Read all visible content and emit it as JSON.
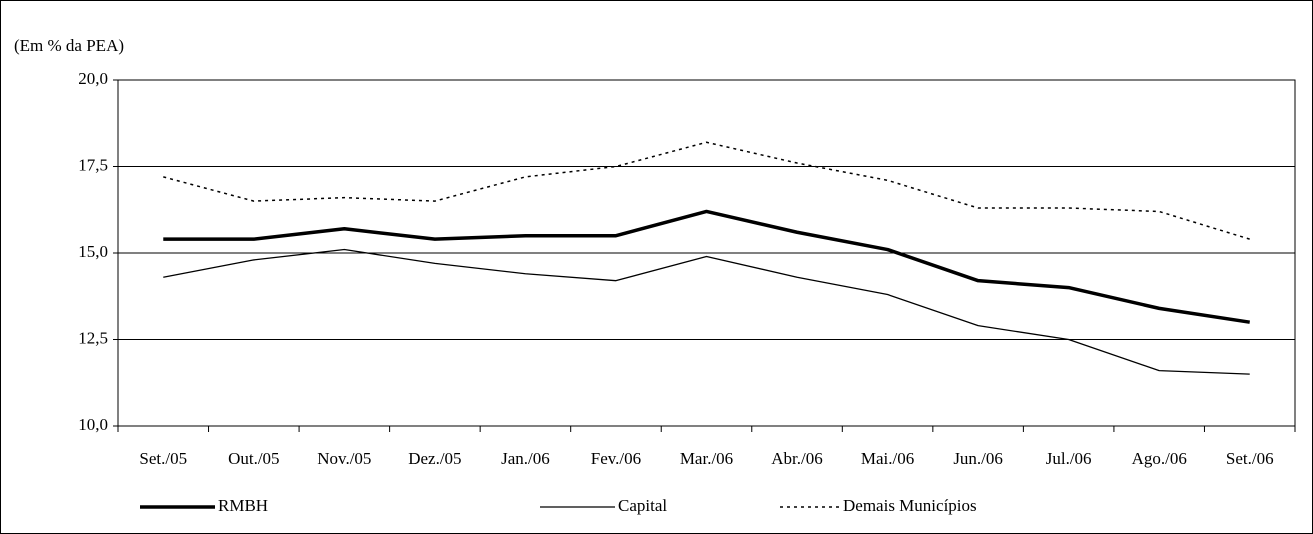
{
  "chart_data": {
    "type": "line",
    "y_label": "(Em % da PEA)",
    "categories": [
      "Set./05",
      "Out./05",
      "Nov./05",
      "Dez./05",
      "Jan./06",
      "Fev./06",
      "Mar./06",
      "Abr./06",
      "Mai./06",
      "Jun./06",
      "Jul./06",
      "Ago./06",
      "Set./06"
    ],
    "series": [
      {
        "name": "RMBH",
        "color": "#000000",
        "line_style": "thick",
        "values": [
          15.4,
          15.4,
          15.7,
          15.4,
          15.5,
          15.5,
          16.2,
          15.6,
          15.1,
          14.2,
          14.0,
          13.4,
          13.0
        ]
      },
      {
        "name": "Capital",
        "color": "#000000",
        "line_style": "thin",
        "values": [
          14.3,
          14.8,
          15.1,
          14.7,
          14.4,
          14.2,
          14.9,
          14.3,
          13.8,
          12.9,
          12.5,
          11.6,
          11.5
        ]
      },
      {
        "name": "Demais Municípios",
        "color": "#000000",
        "line_style": "dotted",
        "values": [
          17.2,
          16.5,
          16.6,
          16.5,
          17.2,
          17.5,
          18.2,
          17.6,
          17.1,
          16.3,
          16.3,
          16.2,
          15.4
        ]
      }
    ],
    "ylim": [
      10,
      20
    ],
    "yticks": [
      {
        "value": 10,
        "label": "10,0"
      },
      {
        "value": 12.5,
        "label": "12,5"
      },
      {
        "value": 15,
        "label": "15,0"
      },
      {
        "value": 17.5,
        "label": "17,5"
      },
      {
        "value": 20,
        "label": "20,0"
      }
    ],
    "grid": true,
    "legend": "bottom"
  }
}
